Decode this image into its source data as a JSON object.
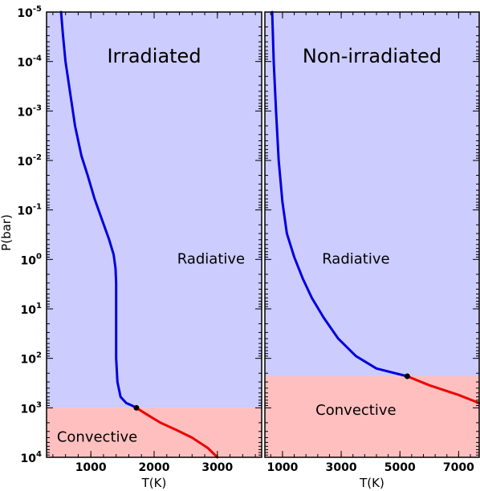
{
  "chart_data": [
    {
      "type": "line",
      "title": "Irradiated",
      "xlabel": "T(K)",
      "ylabel": "P(bar)",
      "xlim": [
        300,
        3700
      ],
      "ylim": [
        1e-05,
        10000
      ],
      "y_scale": "log",
      "y_inverted": true,
      "x_ticks": [
        1000,
        2000,
        3000
      ],
      "x_tick_labels": [
        "1000",
        "2000",
        "3000"
      ],
      "y_ticks": [
        1e-05,
        0.0001,
        0.001,
        0.01,
        0.1,
        1,
        10,
        100,
        1000,
        10000
      ],
      "y_tick_labels": [
        {
          "base": "10",
          "exp": "-5"
        },
        {
          "base": "10",
          "exp": "-4"
        },
        {
          "base": "10",
          "exp": "-3"
        },
        {
          "base": "10",
          "exp": "-2"
        },
        {
          "base": "10",
          "exp": "-1"
        },
        {
          "base": "10",
          "exp": "0"
        },
        {
          "base": "10",
          "exp": "1"
        },
        {
          "base": "10",
          "exp": "2"
        },
        {
          "base": "10",
          "exp": "3"
        },
        {
          "base": "10",
          "exp": "4"
        }
      ],
      "regions": [
        {
          "label": "Radiative",
          "p_min": 1e-05,
          "p_max": 1000,
          "color": "#ccccff",
          "label_T": 2900,
          "label_P": 1
        },
        {
          "label": "Convective",
          "p_min": 1000,
          "p_max": 10000,
          "color": "#ffbfbf",
          "label_T": 1100,
          "label_P": 4000
        }
      ],
      "series": [
        {
          "role": "radiative",
          "color": "#0000dd",
          "points": [
            [
              530,
              1e-05
            ],
            [
              560,
              3e-05
            ],
            [
              600,
              0.0001
            ],
            [
              680,
              0.0005
            ],
            [
              750,
              0.002
            ],
            [
              850,
              0.008
            ],
            [
              950,
              0.02
            ],
            [
              1060,
              0.06
            ],
            [
              1170,
              0.15
            ],
            [
              1290,
              0.4
            ],
            [
              1360,
              0.8
            ],
            [
              1390,
              1.5
            ],
            [
              1400,
              3
            ],
            [
              1400,
              10
            ],
            [
              1400,
              40
            ],
            [
              1400,
              100
            ],
            [
              1420,
              300
            ],
            [
              1470,
              600
            ],
            [
              1560,
              800
            ],
            [
              1650,
              900
            ],
            [
              1720,
              1000
            ]
          ]
        },
        {
          "role": "convective",
          "color": "#ee0000",
          "points": [
            [
              1720,
              1000
            ],
            [
              1900,
              1400
            ],
            [
              2100,
              2000
            ],
            [
              2350,
              2800
            ],
            [
              2600,
              4000
            ],
            [
              2850,
              6500
            ],
            [
              3000,
              10000
            ]
          ]
        }
      ],
      "boundary_point": {
        "T": 1720,
        "P": 1000
      }
    },
    {
      "type": "line",
      "title": "Non-irradiated",
      "xlabel": "T(K)",
      "xlim": [
        400,
        7700
      ],
      "ylim": [
        1e-05,
        10000
      ],
      "y_scale": "log",
      "y_inverted": true,
      "x_ticks": [
        1000,
        3000,
        5000,
        7000
      ],
      "x_tick_labels": [
        "1000",
        "3000",
        "5000",
        "7000"
      ],
      "regions": [
        {
          "label": "Radiative",
          "p_min": 1e-05,
          "p_max": 230,
          "color": "#ccccff",
          "label_T": 3500,
          "label_P": 1
        },
        {
          "label": "Convective",
          "p_min": 230,
          "p_max": 10000,
          "color": "#ffbfbf",
          "label_T": 3500,
          "label_P": 1150
        }
      ],
      "series": [
        {
          "role": "radiative",
          "color": "#0000dd",
          "points": [
            [
              650,
              1e-05
            ],
            [
              700,
              0.0001
            ],
            [
              780,
              0.001
            ],
            [
              870,
              0.01
            ],
            [
              1000,
              0.07
            ],
            [
              1150,
              0.3
            ],
            [
              1400,
              0.9
            ],
            [
              1700,
              2.5
            ],
            [
              2000,
              6
            ],
            [
              2400,
              15
            ],
            [
              2900,
              40
            ],
            [
              3500,
              90
            ],
            [
              4200,
              160
            ],
            [
              5250,
              230
            ]
          ]
        },
        {
          "role": "convective",
          "color": "#ee0000",
          "points": [
            [
              5250,
              230
            ],
            [
              6000,
              350
            ],
            [
              7000,
              550
            ],
            [
              7700,
              800
            ]
          ]
        }
      ],
      "boundary_point": {
        "T": 5250,
        "P": 230
      }
    }
  ]
}
